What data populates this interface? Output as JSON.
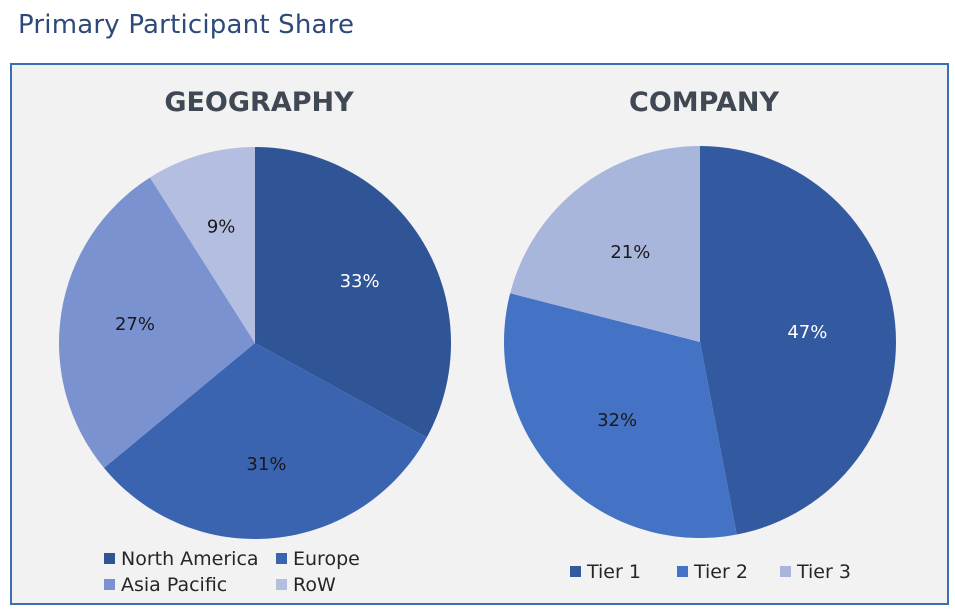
{
  "page": {
    "title": "Primary Participant Share"
  },
  "colors": {
    "frame_border": "#3B6FB0",
    "frame_background": "#F2F2F2",
    "title_text": "#2E4A7A",
    "label_dark": "#1A1A1A",
    "label_light": "#FFFFFF"
  },
  "chart_data": [
    {
      "type": "pie",
      "title": "GEOGRAPHY",
      "start_angle_deg": 0,
      "direction": "clockwise",
      "legend_position": "bottom",
      "slices": [
        {
          "name": "North America",
          "value": 33,
          "label": "33%",
          "color": "#2F5597",
          "label_color": "#FFFFFF"
        },
        {
          "name": "Europe",
          "value": 31,
          "label": "31%",
          "color": "#3A64B0",
          "label_color": "#1A1A1A"
        },
        {
          "name": "Asia Pacific",
          "value": 27,
          "label": "27%",
          "color": "#7A92D0",
          "label_color": "#1A1A1A"
        },
        {
          "name": "RoW",
          "value": 9,
          "label": "9%",
          "color": "#B4BEE0",
          "label_color": "#1A1A1A"
        }
      ]
    },
    {
      "type": "pie",
      "title": "COMPANY",
      "start_angle_deg": 0,
      "direction": "clockwise",
      "legend_position": "bottom",
      "slices": [
        {
          "name": "Tier 1",
          "value": 47,
          "label": "47%",
          "color": "#335AA0",
          "label_color": "#FFFFFF"
        },
        {
          "name": "Tier 2",
          "value": 32,
          "label": "32%",
          "color": "#4472C4",
          "label_color": "#1A1A1A"
        },
        {
          "name": "Tier 3",
          "value": 21,
          "label": "21%",
          "color": "#A9B6DC",
          "label_color": "#1A1A1A"
        }
      ]
    }
  ]
}
